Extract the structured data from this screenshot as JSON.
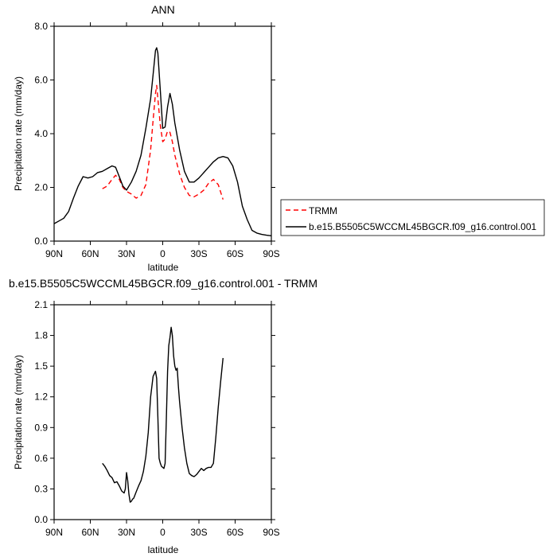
{
  "chart_data": [
    {
      "type": "line",
      "title": "ANN",
      "xlabel": "latitude",
      "ylabel": "Precipitation rate (mm/day)",
      "xlim": [
        90,
        -90
      ],
      "ylim": [
        0,
        8
      ],
      "x_ticks": [
        {
          "value": 90,
          "label": "90N"
        },
        {
          "value": 60,
          "label": "60N"
        },
        {
          "value": 30,
          "label": "30N"
        },
        {
          "value": 0,
          "label": "0"
        },
        {
          "value": -30,
          "label": "30S"
        },
        {
          "value": -60,
          "label": "60S"
        },
        {
          "value": -90,
          "label": "90S"
        }
      ],
      "y_ticks": [
        {
          "value": 0,
          "label": "0.0"
        },
        {
          "value": 2,
          "label": "2.0"
        },
        {
          "value": 4,
          "label": "4.0"
        },
        {
          "value": 6,
          "label": "6.0"
        },
        {
          "value": 8,
          "label": "8.0"
        }
      ],
      "grid": false,
      "legend_position": "right",
      "series": [
        {
          "name": "TRMM",
          "color": "#ff0000",
          "dash": "dashed",
          "x": [
            50,
            46,
            42,
            39,
            36,
            33,
            30,
            26,
            22,
            18,
            14,
            10,
            8,
            6,
            5,
            4,
            2,
            0,
            -2,
            -4,
            -6,
            -8,
            -10,
            -14,
            -18,
            -22,
            -26,
            -30,
            -34,
            -38,
            -42,
            -46,
            -50
          ],
          "y": [
            1.95,
            2.05,
            2.3,
            2.45,
            2.3,
            2.0,
            1.85,
            1.75,
            1.6,
            1.7,
            2.1,
            3.4,
            4.5,
            5.5,
            5.8,
            5.3,
            4.3,
            3.7,
            3.8,
            4.1,
            4.05,
            3.7,
            3.2,
            2.5,
            2.0,
            1.7,
            1.65,
            1.75,
            1.9,
            2.15,
            2.3,
            2.1,
            1.55
          ]
        },
        {
          "name": "b.e15.B5505C5WCCML45BGCR.f09_g16.control.001",
          "color": "#000000",
          "dash": "solid",
          "x": [
            90,
            86,
            82,
            78,
            74,
            70,
            66,
            62,
            58,
            54,
            50,
            46,
            42,
            39,
            36,
            33,
            30,
            26,
            22,
            18,
            14,
            10,
            8,
            6,
            5,
            4,
            2,
            0,
            -2,
            -4,
            -6,
            -8,
            -10,
            -14,
            -18,
            -22,
            -26,
            -30,
            -34,
            -38,
            -42,
            -46,
            -50,
            -54,
            -58,
            -62,
            -66,
            -70,
            -74,
            -78,
            -82,
            -86,
            -90
          ],
          "y": [
            0.65,
            0.75,
            0.85,
            1.1,
            1.6,
            2.05,
            2.4,
            2.35,
            2.4,
            2.55,
            2.6,
            2.7,
            2.8,
            2.75,
            2.4,
            2.05,
            1.9,
            2.2,
            2.6,
            3.2,
            4.2,
            5.3,
            6.2,
            7.1,
            7.2,
            7.0,
            5.6,
            4.2,
            4.25,
            5.0,
            5.5,
            5.1,
            4.4,
            3.4,
            2.6,
            2.2,
            2.2,
            2.35,
            2.55,
            2.75,
            2.95,
            3.1,
            3.15,
            3.1,
            2.8,
            2.2,
            1.3,
            0.8,
            0.4,
            0.3,
            0.25,
            0.22,
            0.2
          ]
        }
      ]
    },
    {
      "type": "line",
      "title": "b.e15.B5505C5WCCML45BGCR.f09_g16.control.001 - TRMM",
      "xlabel": "latitude",
      "ylabel": "Precipitation rate (mm/day)",
      "xlim": [
        90,
        -90
      ],
      "ylim": [
        0,
        2.1
      ],
      "x_ticks": [
        {
          "value": 90,
          "label": "90N"
        },
        {
          "value": 60,
          "label": "60N"
        },
        {
          "value": 30,
          "label": "30N"
        },
        {
          "value": 0,
          "label": "0"
        },
        {
          "value": -30,
          "label": "30S"
        },
        {
          "value": -60,
          "label": "60S"
        },
        {
          "value": -90,
          "label": "90S"
        }
      ],
      "y_ticks": [
        {
          "value": 0,
          "label": "0.0"
        },
        {
          "value": 0.3,
          "label": "0.3"
        },
        {
          "value": 0.6,
          "label": "0.6"
        },
        {
          "value": 0.9,
          "label": "0.9"
        },
        {
          "value": 1.2,
          "label": "1.2"
        },
        {
          "value": 1.5,
          "label": "1.5"
        },
        {
          "value": 1.8,
          "label": "1.8"
        },
        {
          "value": 2.1,
          "label": "2.1"
        }
      ],
      "grid": false,
      "series": [
        {
          "color": "#000000",
          "dash": "solid",
          "x": [
            50,
            48,
            46,
            44,
            42,
            40,
            38,
            36,
            34,
            32,
            31,
            30,
            29,
            28,
            27,
            26,
            25,
            24,
            22,
            20,
            18,
            16,
            14,
            12,
            10,
            8,
            6,
            5,
            4,
            3,
            2,
            1,
            0,
            -1,
            -2,
            -3,
            -4,
            -5,
            -6,
            -7,
            -8,
            -9,
            -10,
            -11,
            -12,
            -13,
            -14,
            -16,
            -18,
            -20,
            -22,
            -24,
            -26,
            -28,
            -30,
            -32,
            -34,
            -36,
            -38,
            -40,
            -42,
            -44,
            -46,
            -48,
            -50
          ],
          "y": [
            0.55,
            0.52,
            0.48,
            0.43,
            0.41,
            0.36,
            0.37,
            0.33,
            0.28,
            0.26,
            0.3,
            0.46,
            0.38,
            0.25,
            0.17,
            0.18,
            0.2,
            0.21,
            0.27,
            0.33,
            0.38,
            0.47,
            0.62,
            0.85,
            1.2,
            1.4,
            1.45,
            1.38,
            1.0,
            0.6,
            0.55,
            0.52,
            0.51,
            0.5,
            0.55,
            1.0,
            1.45,
            1.7,
            1.78,
            1.88,
            1.8,
            1.6,
            1.5,
            1.46,
            1.48,
            1.3,
            1.15,
            0.9,
            0.7,
            0.55,
            0.45,
            0.43,
            0.42,
            0.44,
            0.47,
            0.5,
            0.48,
            0.5,
            0.51,
            0.51,
            0.55,
            0.8,
            1.1,
            1.35,
            1.58
          ]
        }
      ]
    }
  ]
}
